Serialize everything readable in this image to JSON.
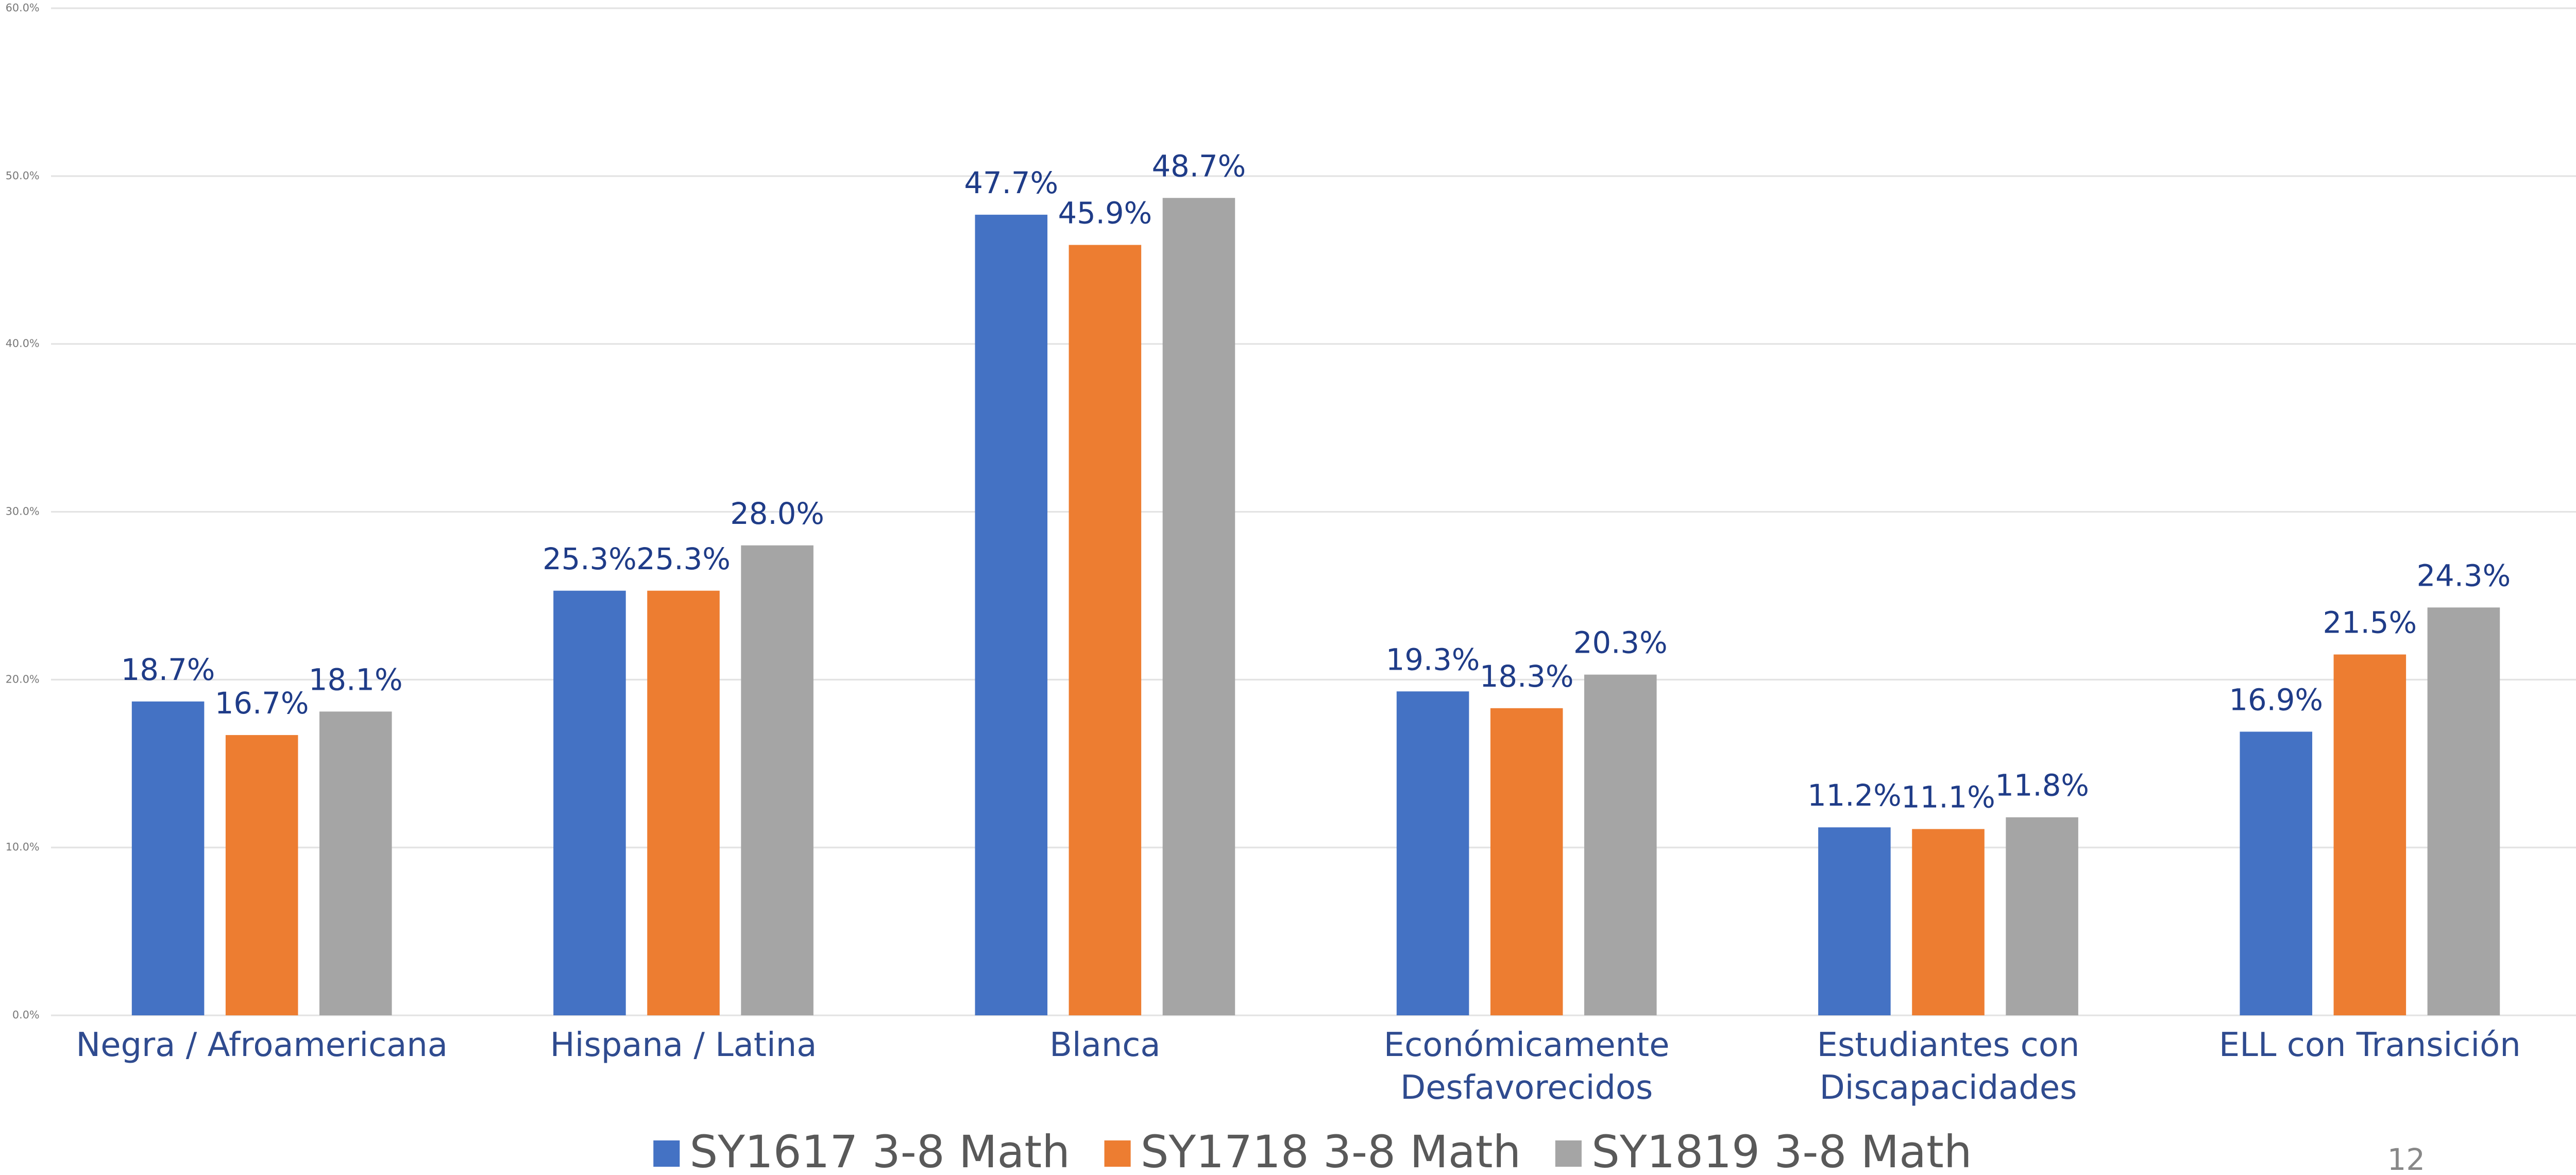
{
  "chart_data": {
    "type": "bar",
    "categories": [
      "Negra / Afroamericana",
      "Hispana / Latina",
      "Blanca",
      "Económicamente\nDesfavorecidos",
      "Estudiantes con\nDiscapacidades",
      "ELL con Transición"
    ],
    "series": [
      {
        "name": "SY1617 3-8 Math",
        "color": "#4472c4",
        "values": [
          18.7,
          25.3,
          47.7,
          19.3,
          11.2,
          16.9
        ],
        "value_labels": [
          "18.7%",
          "25.3%",
          "47.7%",
          "19.3%",
          "11.2%",
          "16.9%"
        ]
      },
      {
        "name": "SY1718 3-8 Math",
        "color": "#ed7d31",
        "values": [
          16.7,
          25.3,
          45.9,
          18.3,
          11.1,
          21.5
        ],
        "value_labels": [
          "16.7%",
          "25.3%",
          "45.9%",
          "18.3%",
          "11.1%",
          "21.5%"
        ]
      },
      {
        "name": "SY1819 3-8 Math",
        "color": "#a5a5a5",
        "values": [
          18.1,
          28.0,
          48.7,
          20.3,
          11.8,
          24.3
        ],
        "value_labels": [
          "18.1%",
          "28.0%",
          "48.7%",
          "20.3%",
          "11.8%",
          "24.3%"
        ]
      }
    ],
    "ylim": [
      0,
      60
    ],
    "yticks": [
      {
        "value": 0,
        "label": "0.0%"
      },
      {
        "value": 10,
        "label": "10.0%"
      },
      {
        "value": 20,
        "label": "20.0%"
      },
      {
        "value": 30,
        "label": "30.0%"
      },
      {
        "value": 40,
        "label": "40.0%"
      },
      {
        "value": 50,
        "label": "50.0%"
      },
      {
        "value": 60,
        "label": "60.0%"
      }
    ],
    "grid": true,
    "legend": "bottom"
  },
  "page_number": "12"
}
